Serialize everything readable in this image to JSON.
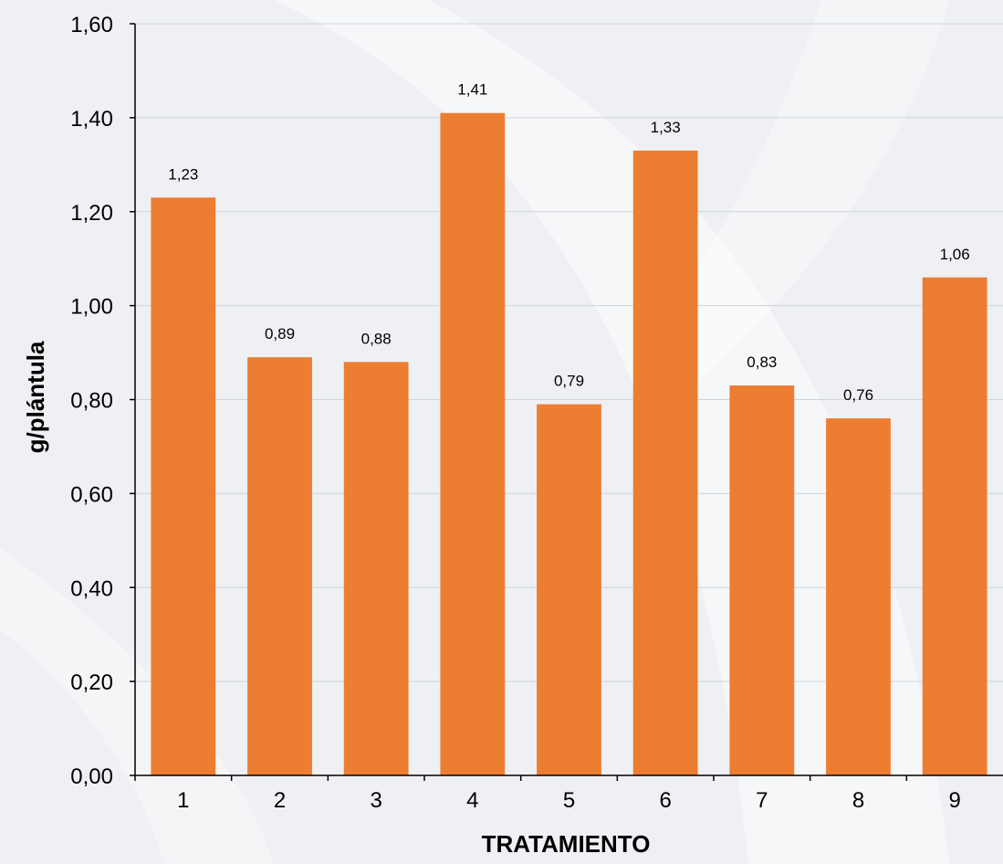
{
  "chart_data": {
    "type": "bar",
    "title": "",
    "xlabel": "TRATAMIENTO",
    "ylabel": "g/plántula",
    "categories": [
      "1",
      "2",
      "3",
      "4",
      "5",
      "6",
      "7",
      "8",
      "9"
    ],
    "values": [
      1.23,
      0.89,
      0.88,
      1.41,
      0.79,
      1.33,
      0.83,
      0.76,
      1.06
    ],
    "value_labels": [
      "1,23",
      "0,89",
      "0,88",
      "1,41",
      "0,79",
      "1,33",
      "0,83",
      "0,76",
      "1,06"
    ],
    "ylim": [
      0,
      1.6
    ],
    "yticks": [
      0,
      0.2,
      0.4,
      0.6,
      0.8,
      1.0,
      1.2,
      1.4,
      1.6
    ],
    "ytick_labels": [
      "0,00",
      "0,20",
      "0,40",
      "0,60",
      "0,80",
      "1,00",
      "1,20",
      "1,40",
      "1,60"
    ],
    "grid": true,
    "legend": "none",
    "bar_color": "#ed7d31",
    "grid_color": "#d0d4da",
    "background_color": "#eef0f3",
    "decoration_color": "#ffffff"
  }
}
